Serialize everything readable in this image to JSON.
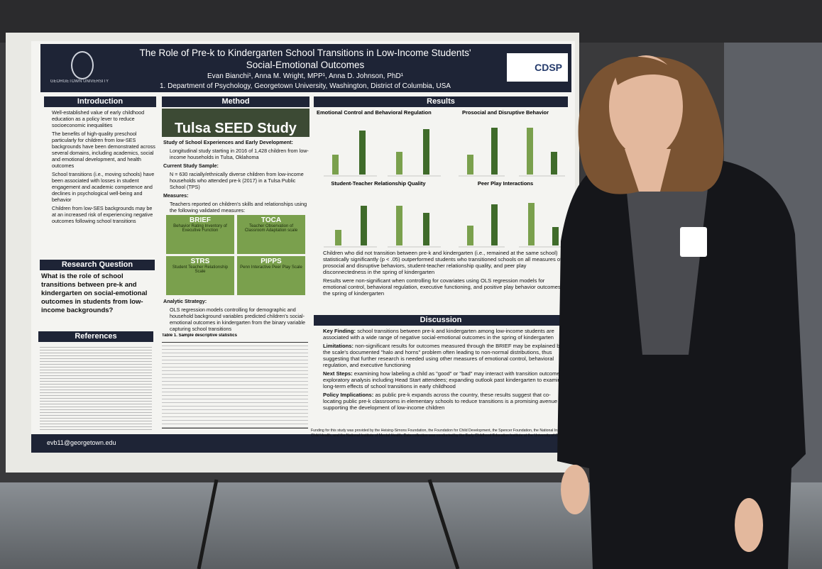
{
  "header": {
    "title": "The Role of Pre-k to Kindergarten School Transitions in Low-Income Students' Social-Emotional Outcomes",
    "authors": "Evan Bianchi¹, Anna M. Wright, MPP¹, Anna D. Johnson, PhD¹",
    "affiliation": "1. Department of Psychology, Georgetown University, Washington, District of Columbia, USA",
    "left_logo": "GEORGETOWN UNIVERSITY",
    "right_logo": "CDSP"
  },
  "introduction": {
    "heading": "Introduction",
    "bullets": [
      "Well-established value of early childhood education as a policy lever to reduce socioeconomic inequalities",
      "The benefits of high-quality preschool particularly for children from low-SES backgrounds have been demonstrated across several domains, including academics, social and emotional development, and health outcomes",
      "School transitions (i.e., moving schools) have been associated with losses in student engagement and academic competence and declines in psychological well-being and behavior",
      "Children from low-SES backgrounds may be at an increased risk of experiencing negative outcomes following school transitions"
    ]
  },
  "research_question": {
    "heading": "Research Question",
    "text": "What is the role of school transitions between pre-k and kindergarten on social-emotional outcomes in students from low-income backgrounds?"
  },
  "references": {
    "heading": "References"
  },
  "method": {
    "heading": "Method",
    "banner": "Tulsa SEED Study",
    "sections": [
      {
        "heading": "Study of School Experiences and Early Development:",
        "text": "Longitudinal study starting in 2016 of 1,428 children from low-income households in Tulsa, Oklahoma"
      },
      {
        "heading": "Current Study Sample:",
        "text": "N = 630 racially/ethnically diverse children from low-income households who attended pre-k (2017) in a Tulsa Public School (TPS)"
      },
      {
        "heading": "Measures:",
        "text": "Teachers reported on children's skills and relationships using the following validated measures:"
      }
    ],
    "measures": [
      {
        "name": "BRIEF",
        "desc": "Behavior Rating Inventory of Executive Function"
      },
      {
        "name": "TOCA",
        "desc": "Teacher Observation of Classroom Adaptation scale"
      },
      {
        "name": "STRS",
        "desc": "Student Teacher Relationship Scale"
      },
      {
        "name": "PIPPS",
        "desc": "Penn Interactive Peer Play Scale"
      }
    ],
    "analytic": {
      "heading": "Analytic Strategy:",
      "text": "OLS regression models controlling for demographic and household background variables predicted children's social-emotional outcomes in kindergarten from the binary variable capturing school transitions"
    },
    "table_caption": "Table 1. Sample descriptive statistics"
  },
  "results": {
    "heading": "Results",
    "chart_titles": [
      "Emotional Control and Behavioral Regulation",
      "Prosocial and Disruptive Behavior",
      "Student-Teacher Relationship Quality",
      "Peer Play Interactions"
    ],
    "bullets": [
      "Children who did not transition between pre-k and kindergarten (i.e., remained at the same school) statistically significantly (p < .05) outperformed students who transitioned schools on all measures of prosocial and disruptive behaviors, student-teacher relationship quality, and peer play disconnectedness in the spring of kindergarten",
      "Results were non-significant when controlling for covariates using OLS regression models for emotional control, behavioral regulation, executive functioning, and positive play behavior outcomes in the spring of kindergarten"
    ]
  },
  "discussion": {
    "heading": "Discussion",
    "items": [
      {
        "label": "Key Finding:",
        "text": "school transitions between pre-k and kindergarten among low-income students are associated with a wide range of negative social-emotional outcomes in the spring of kindergarten"
      },
      {
        "label": "Limitations:",
        "text": "non-significant results for outcomes measured through the BRIEF may be explained by the scale's documented \"halo and horns\" problem often leading to non-normal distributions, thus suggesting that further research is needed using other measures of emotional control, behavioral regulation, and executive functioning"
      },
      {
        "label": "Next Steps:",
        "text": "examining how labeling a child as \"good\" or \"bad\" may interact with transition outcomes; exploratory analysis including Head Start attendees; expanding outlook past kindergarten to examine long-term effects of school transitions in early childhood"
      },
      {
        "label": "Policy Implications:",
        "text": "as public pre-k expands across the country, these results suggest that co-locating public pre-k classrooms in elementary schools to reduce transitions is a promising avenue for supporting the development of low-income children"
      }
    ]
  },
  "footer": {
    "email": "evb11@georgetown.edu",
    "funding": "Funding for this study was provided by the Heising-Simons Foundation, the Foundation for Child Development, the Spencer Foundation, the National Institute of Child Health, and the National Institute of Mental Health. Data collection was conducted by the Early Childhood Education Institute at the University of Oklahoma"
  }
}
